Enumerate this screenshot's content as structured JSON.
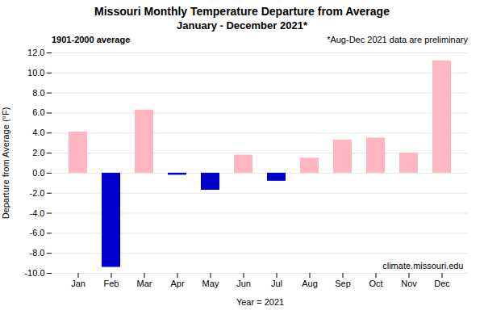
{
  "chart_data": {
    "type": "bar",
    "title": "Missouri Monthly Temperature Departure from Average",
    "subtitle": "January - December 2021*",
    "x_label": "Year = 2021",
    "y_label": "Departure from Average (°F)",
    "categories": [
      "Jan",
      "Feb",
      "Mar",
      "Apr",
      "May",
      "Jun",
      "Jul",
      "Aug",
      "Sep",
      "Oct",
      "Nov",
      "Dec"
    ],
    "values": [
      4.1,
      -9.4,
      6.3,
      -0.2,
      -1.7,
      1.8,
      -0.8,
      1.5,
      3.3,
      3.5,
      2.0,
      11.2
    ],
    "colors": [
      "#FFB6C1",
      "#0000CD",
      "#FFB6C1",
      "#0000CD",
      "#0000CD",
      "#FFB6C1",
      "#0000CD",
      "#FFB6C1",
      "#FFB6C1",
      "#FFB6C1",
      "#FFB6C1",
      "#FFB6C1"
    ],
    "ylim": [
      -10.0,
      12.0
    ],
    "yticks": [
      {
        "value": -10.0,
        "label": "-10.0"
      },
      {
        "value": -8.0,
        "label": "-8.0"
      },
      {
        "value": -6.0,
        "label": "-6.0"
      },
      {
        "value": -4.0,
        "label": "-4.0"
      },
      {
        "value": -2.0,
        "label": "-2.0"
      },
      {
        "value": 0.0,
        "label": "0.0"
      },
      {
        "value": 2.0,
        "label": "2.0"
      },
      {
        "value": 4.0,
        "label": "4.0"
      },
      {
        "value": 6.0,
        "label": "6.0"
      },
      {
        "value": 8.0,
        "label": "8.0"
      },
      {
        "value": 10.0,
        "label": "10.0"
      },
      {
        "value": 12.0,
        "label": "12.0"
      }
    ],
    "grid": true,
    "annotations": [
      "1901-2000 average",
      "*Aug-Dec 2021 data are preliminary",
      "climate.missouri.edu"
    ]
  }
}
